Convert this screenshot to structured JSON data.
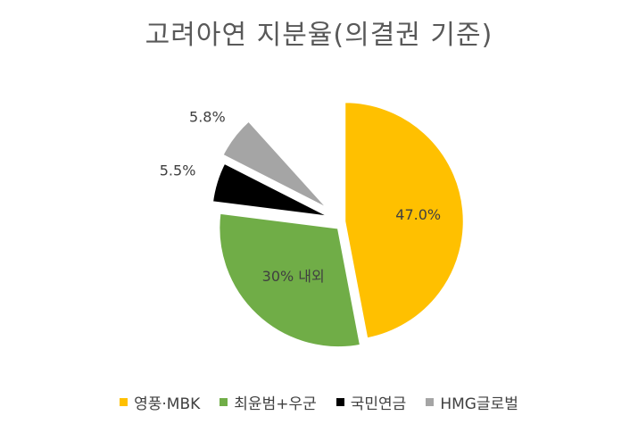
{
  "chart_data": {
    "type": "pie",
    "title": "고려아연 지분율(의결권 기준)",
    "slices": [
      {
        "label": "영풍·MBK",
        "value": 47.0,
        "data_label": "47.0%",
        "color": "#FFC000"
      },
      {
        "label": "최윤범+우군",
        "value": 30.0,
        "data_label": "30% 내외",
        "color": "#70AD47"
      },
      {
        "label": "국민연금",
        "value": 5.5,
        "data_label": "5.5%",
        "color": "#000000"
      },
      {
        "label": "HMG글로벌",
        "value": 5.8,
        "data_label": "5.8%",
        "color": "#A5A5A5"
      }
    ],
    "start_angle_deg": 0,
    "direction": "clockwise",
    "legend_position": "bottom"
  }
}
